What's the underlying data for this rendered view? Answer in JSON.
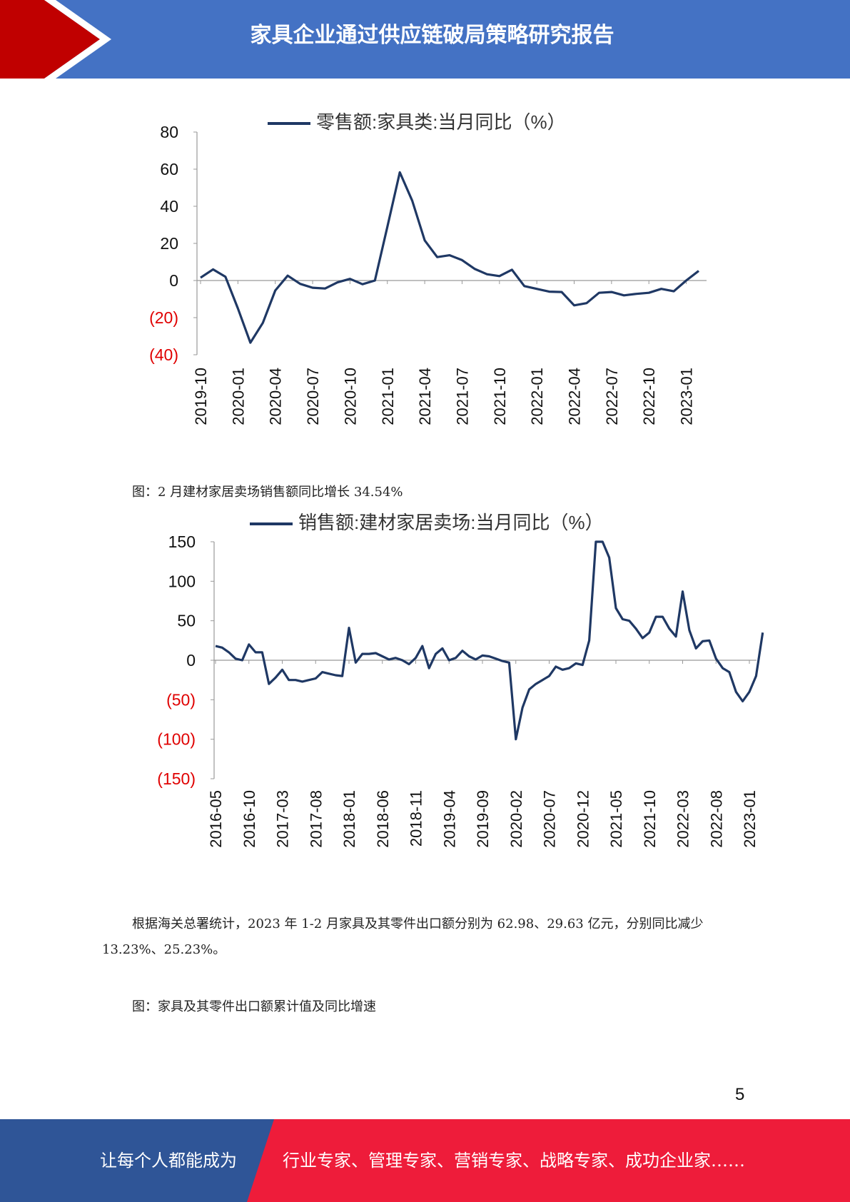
{
  "header": {
    "title": "家具企业通过供应链破局策略研究报告",
    "bg_color": "#4472c4",
    "accent_color": "#c00000"
  },
  "chart_data": [
    {
      "type": "line",
      "legend": "零售额:家具类:当月同比（%）",
      "legend_placement": "top",
      "yticks": [
        "80",
        "60",
        "40",
        "20",
        "0",
        "(20)",
        "(40)"
      ],
      "ylim": [
        -40,
        80
      ],
      "xticks": [
        "2019-10",
        "2020-01",
        "2020-04",
        "2020-07",
        "2020-10",
        "2021-01",
        "2021-04",
        "2021-07",
        "2021-10",
        "2022-01",
        "2022-04",
        "2022-07",
        "2022-10",
        "2023-01"
      ],
      "x": [
        "2019-10",
        "2019-11",
        "2019-12",
        "2020-01",
        "2020-02",
        "2020-03",
        "2020-04",
        "2020-05",
        "2020-06",
        "2020-07",
        "2020-08",
        "2020-09",
        "2020-10",
        "2020-11",
        "2020-12",
        "2021-01",
        "2021-02",
        "2021-03",
        "2021-04",
        "2021-05",
        "2021-06",
        "2021-07",
        "2021-08",
        "2021-09",
        "2021-10",
        "2021-11",
        "2021-12",
        "2022-01",
        "2022-02",
        "2022-03",
        "2022-04",
        "2022-05",
        "2022-06",
        "2022-07",
        "2022-08",
        "2022-09",
        "2022-10",
        "2022-11",
        "2022-12",
        "2023-01",
        "2023-02"
      ],
      "values": [
        1.5,
        6,
        2,
        -15,
        -33.5,
        -22.8,
        -5.4,
        2.6,
        -1.8,
        -3.9,
        -4.3,
        -1,
        0.9,
        -2,
        0,
        29,
        58.3,
        43,
        21.6,
        12.6,
        13.6,
        11,
        6.3,
        3.4,
        2.4,
        5.8,
        -3,
        -4.5,
        -6,
        -6.2,
        -13.4,
        -12.2,
        -6.6,
        -6.2,
        -8,
        -7.2,
        -6.6,
        -4.5,
        -5.8,
        0,
        5.2
      ],
      "line_color": "#1f3864"
    },
    {
      "type": "line",
      "legend": "销售额:建材家居卖场:当月同比（%）",
      "legend_placement": "top",
      "yticks": [
        "150",
        "100",
        "50",
        "0",
        "(50)",
        "(100)",
        "(150)"
      ],
      "ylim": [
        -150,
        150
      ],
      "xticks": [
        "2016-05",
        "2016-10",
        "2017-03",
        "2017-08",
        "2018-01",
        "2018-06",
        "2018-11",
        "2019-04",
        "2019-09",
        "2020-02",
        "2020-07",
        "2020-12",
        "2021-05",
        "2021-10",
        "2022-03",
        "2022-08",
        "2023-01"
      ],
      "x_start": "2016-05",
      "values": [
        18,
        16,
        10,
        2,
        0,
        20,
        10,
        10,
        -30,
        -22,
        -12,
        -25,
        -25,
        -27,
        -25,
        -23,
        -15,
        -17,
        -19,
        -20,
        41,
        -3,
        8,
        8,
        9,
        5,
        1,
        3,
        0,
        -5,
        3,
        18,
        -10,
        8,
        15,
        0,
        3,
        12,
        5,
        1,
        6,
        5,
        2,
        -1,
        -3,
        -100,
        -60,
        -37,
        -30,
        -25,
        -20,
        -8,
        -12,
        -10,
        -4,
        -6,
        25,
        150,
        150,
        130,
        66,
        52,
        50,
        40,
        28,
        35,
        55,
        55,
        40,
        30,
        87,
        38,
        15,
        24,
        25,
        2,
        -10,
        -15,
        -40,
        -52,
        -40,
        -20,
        35
      ],
      "line_color": "#1f3864"
    }
  ],
  "captions": {
    "fig2": "图：2 月建材家居卖场销售额同比增长 34.54%",
    "fig3": "图：家具及其零件出口额累计值及同比增速"
  },
  "paragraph": "根据海关总署统计，2023 年 1-2 月家具及其零件出口额分别为 62.98、29.63 亿元，分别同比减少 13.23%、25.23%。",
  "page_number": "5",
  "footer": {
    "left_text": "让每个人都能成为",
    "right_text": "行业专家、管理专家、营销专家、战略专家、成功企业家……",
    "left_color": "#2f5597",
    "right_color": "#ee1c3a"
  }
}
